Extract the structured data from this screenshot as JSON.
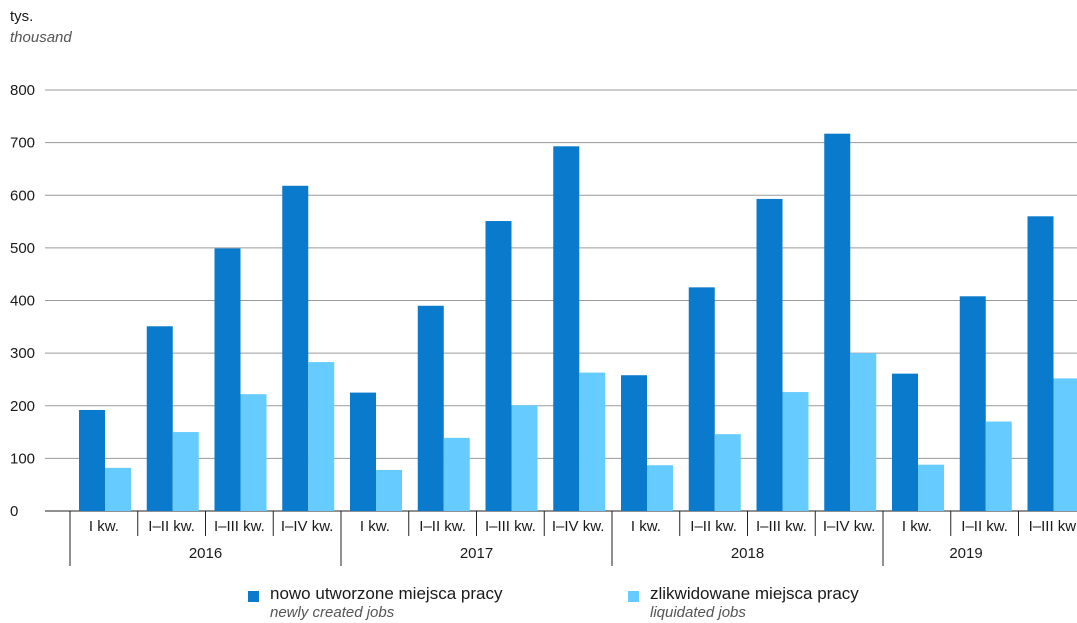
{
  "chart_data": {
    "type": "bar",
    "unit": {
      "pl": "tys.",
      "en": "thousand"
    },
    "ylim": [
      0,
      800
    ],
    "yticks": [
      0,
      100,
      200,
      300,
      400,
      500,
      600,
      700,
      800
    ],
    "grid": true,
    "categories": [
      "I kw.",
      "I–II kw.",
      "I–III kw.",
      "I–IV kw.",
      "I kw.",
      "I–II kw.",
      "I–III kw.",
      "I–IV kw.",
      "I kw.",
      "I–II kw.",
      "I–III kw.",
      "I–IV kw.",
      "I kw.",
      "I–II kw.",
      "I–III kw"
    ],
    "groups": [
      {
        "label": "2016",
        "count": 4
      },
      {
        "label": "2017",
        "count": 4
      },
      {
        "label": "2018",
        "count": 4
      },
      {
        "label": "2019",
        "count": 3
      }
    ],
    "series": [
      {
        "name": "nowo utworzone miejsca pracy",
        "name_en": "newly created jobs",
        "color": "#0a7acc",
        "values": [
          192,
          351,
          499,
          618,
          225,
          390,
          551,
          693,
          258,
          425,
          593,
          717,
          261,
          408,
          560
        ]
      },
      {
        "name": "zlikwidowane miejsca pracy",
        "name_en": "liquidated jobs",
        "color": "#66ccff",
        "values": [
          82,
          150,
          222,
          283,
          78,
          139,
          201,
          263,
          87,
          146,
          226,
          300,
          88,
          170,
          252
        ]
      }
    ],
    "legend_position": "bottom"
  }
}
